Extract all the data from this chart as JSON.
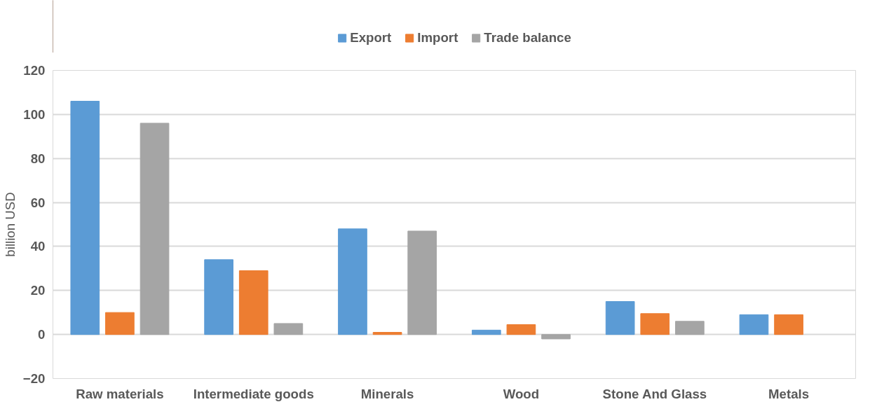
{
  "chart_data": {
    "type": "bar",
    "ylabel": "billion USD",
    "categories": [
      "Raw materials",
      "Intermediate goods",
      "Minerals",
      "Wood",
      "Stone And Glass",
      "Metals"
    ],
    "series": [
      {
        "name": "Export",
        "color": "#5b9bd5",
        "values": [
          106,
          34,
          48,
          2,
          15,
          9
        ]
      },
      {
        "name": "Import",
        "color": "#ed7d31",
        "values": [
          10,
          29,
          1,
          4.5,
          9.5,
          9
        ]
      },
      {
        "name": "Trade balance",
        "color": "#a5a5a5",
        "values": [
          96,
          5,
          47,
          -2,
          6,
          null
        ]
      }
    ],
    "ylim": [
      -20,
      120
    ],
    "yticks": [
      -20,
      0,
      20,
      40,
      60,
      80,
      100,
      120
    ],
    "grid": "y",
    "legend": "top"
  }
}
